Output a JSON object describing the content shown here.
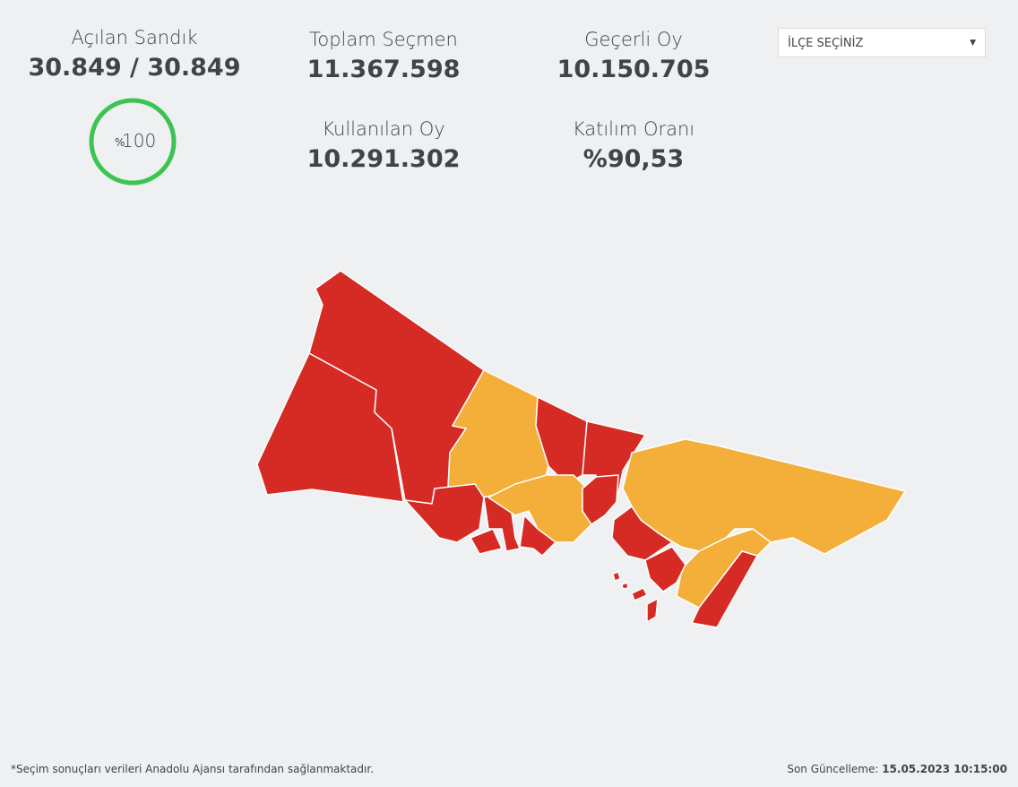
{
  "stats": [
    {
      "label": "Açılan Sandık",
      "value": "30.849 / 30.849"
    },
    {
      "label": "Toplam Seçmen",
      "value": "11.367.598"
    },
    {
      "label": "Geçerli Oy",
      "value": "10.150.705"
    },
    {
      "label": "Kullanılan Oy",
      "value": "10.291.302"
    },
    {
      "label": "Katılım Oranı",
      "value": "%90,53"
    }
  ],
  "progress": {
    "prefix": "%",
    "value": 100
  },
  "dropdown": {
    "label": "İLÇE SEÇİNİZ"
  },
  "footer": {
    "note": "*Seçim sonuçları verileri Anadolu Ajansı tarafından sağlanmaktadır.",
    "updated_label": "Son Güncelleme:",
    "updated_value": "15.05.2023 10:15:00"
  }
}
